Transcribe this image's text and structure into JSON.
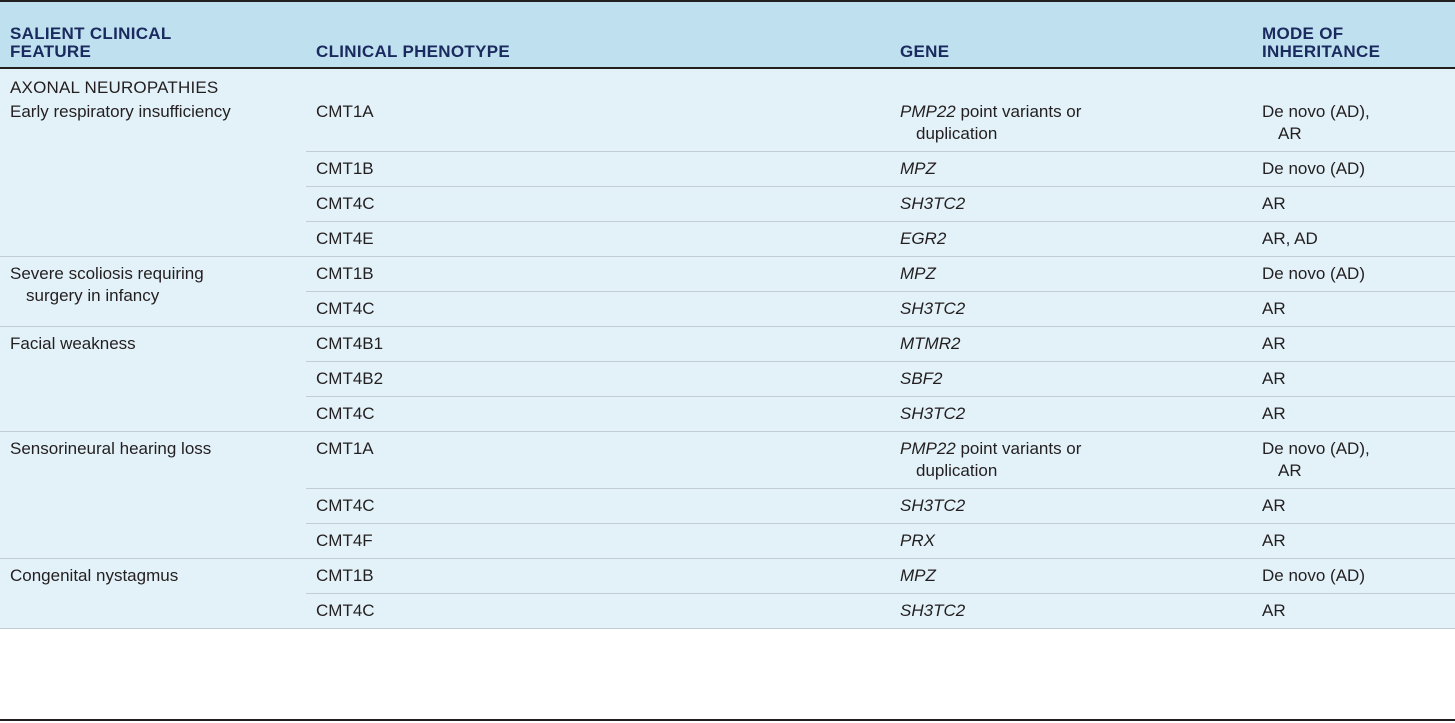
{
  "table": {
    "columns": [
      {
        "line1": "SALIENT CLINICAL",
        "line2": "FEATURE"
      },
      {
        "line1": "",
        "line2": "CLINICAL PHENOTYPE"
      },
      {
        "line1": "",
        "line2": "GENE"
      },
      {
        "line1": "MODE OF",
        "line2": "INHERITANCE"
      }
    ],
    "section_title": "AXONAL NEUROPATHIES",
    "groups": [
      {
        "feature_lines": [
          "Early respiratory insufficiency"
        ],
        "rows": [
          {
            "phenotype": "CMT1A",
            "gene": "PMP22",
            "gene_suffix_1": " point variants or",
            "gene_suffix_2": "duplication",
            "inheritance_1": "De novo (AD),",
            "inheritance_2": "AR"
          },
          {
            "phenotype": "CMT1B",
            "gene": "MPZ",
            "gene_suffix_1": "",
            "gene_suffix_2": "",
            "inheritance_1": "De novo (AD)",
            "inheritance_2": ""
          },
          {
            "phenotype": "CMT4C",
            "gene": "SH3TC2",
            "gene_suffix_1": "",
            "gene_suffix_2": "",
            "inheritance_1": "AR",
            "inheritance_2": ""
          },
          {
            "phenotype": "CMT4E",
            "gene": "EGR2",
            "gene_suffix_1": "",
            "gene_suffix_2": "",
            "inheritance_1": "AR, AD",
            "inheritance_2": ""
          }
        ]
      },
      {
        "feature_lines": [
          "Severe scoliosis requiring",
          "surgery in infancy"
        ],
        "rows": [
          {
            "phenotype": "CMT1B",
            "gene": "MPZ",
            "gene_suffix_1": "",
            "gene_suffix_2": "",
            "inheritance_1": "De novo (AD)",
            "inheritance_2": ""
          },
          {
            "phenotype": "CMT4C",
            "gene": "SH3TC2",
            "gene_suffix_1": "",
            "gene_suffix_2": "",
            "inheritance_1": "AR",
            "inheritance_2": ""
          }
        ]
      },
      {
        "feature_lines": [
          "Facial weakness"
        ],
        "rows": [
          {
            "phenotype": "CMT4B1",
            "gene": "MTMR2",
            "gene_suffix_1": "",
            "gene_suffix_2": "",
            "inheritance_1": "AR",
            "inheritance_2": ""
          },
          {
            "phenotype": "CMT4B2",
            "gene": "SBF2",
            "gene_suffix_1": "",
            "gene_suffix_2": "",
            "inheritance_1": "AR",
            "inheritance_2": ""
          },
          {
            "phenotype": "CMT4C",
            "gene": "SH3TC2",
            "gene_suffix_1": "",
            "gene_suffix_2": "",
            "inheritance_1": "AR",
            "inheritance_2": ""
          }
        ]
      },
      {
        "feature_lines": [
          "Sensorineural hearing loss"
        ],
        "rows": [
          {
            "phenotype": "CMT1A",
            "gene": "PMP22",
            "gene_suffix_1": " point variants or",
            "gene_suffix_2": "duplication",
            "inheritance_1": "De novo (AD),",
            "inheritance_2": "AR"
          },
          {
            "phenotype": "CMT4C",
            "gene": "SH3TC2",
            "gene_suffix_1": "",
            "gene_suffix_2": "",
            "inheritance_1": "AR",
            "inheritance_2": ""
          },
          {
            "phenotype": "CMT4F",
            "gene": "PRX",
            "gene_suffix_1": "",
            "gene_suffix_2": "",
            "inheritance_1": "AR",
            "inheritance_2": ""
          }
        ]
      },
      {
        "feature_lines": [
          "Congenital nystagmus"
        ],
        "rows": [
          {
            "phenotype": "CMT1B",
            "gene": "MPZ",
            "gene_suffix_1": "",
            "gene_suffix_2": "",
            "inheritance_1": "De novo (AD)",
            "inheritance_2": ""
          },
          {
            "phenotype": "CMT4C",
            "gene": "SH3TC2",
            "gene_suffix_1": "",
            "gene_suffix_2": "",
            "inheritance_1": "AR",
            "inheritance_2": ""
          }
        ]
      }
    ]
  }
}
